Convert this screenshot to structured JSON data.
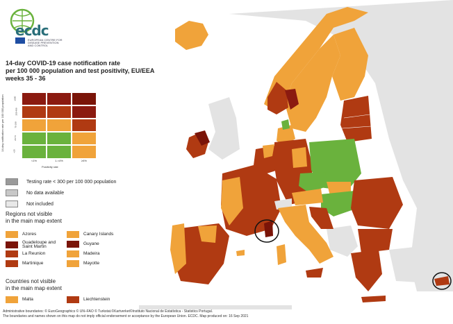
{
  "logo": {
    "text": "ecdc",
    "subtitle": "EUROPEAN CENTRE FOR DISEASE PREVENTION AND CONTROL"
  },
  "title": {
    "line1": "14-day COVID-19 case notification rate",
    "line2": "per 100 000 population and test positivity, EU/EEA",
    "line3": "weeks 35 - 36"
  },
  "matrix": {
    "y_axis_label": "14-day notification rate per 100 000 population",
    "y_ticks": [
      "≥500",
      "200-499",
      "75-199",
      "20-74",
      "<20"
    ],
    "x_axis_label": "Positivity rate",
    "x_ticks": [
      "<1%",
      "1-<4%",
      "≥4%"
    ],
    "colors": [
      [
        "#8b1a10",
        "#8b1a10",
        "#7a1408"
      ],
      [
        "#b03a12",
        "#b03a12",
        "#8b1a10"
      ],
      [
        "#f0a33a",
        "#f0a33a",
        "#b03a12"
      ],
      [
        "#6ab23d",
        "#6ab23d",
        "#f0a33a"
      ],
      [
        "#6ab23d",
        "#6ab23d",
        "#f0a33a"
      ]
    ]
  },
  "legend": {
    "testing_rate": {
      "label": "Testing rate < 300 per 100 000 population",
      "color": "#9a9a9a"
    },
    "no_data": {
      "label": "No data available",
      "color": "#c8c8c8"
    },
    "not_included": {
      "label": "Not included",
      "color": "#e8e8e8"
    }
  },
  "regions": {
    "title_line1": "Regions not visible",
    "title_line2": "in the main map extent",
    "items": [
      {
        "label": "Azores",
        "color": "#f0a33a"
      },
      {
        "label": "Canary Islands",
        "color": "#f0a33a"
      },
      {
        "label": "Guadeloupe and Saint Martin",
        "color": "#7a1408"
      },
      {
        "label": "Guyane",
        "color": "#7a1408"
      },
      {
        "label": "La Reunion",
        "color": "#b03a12"
      },
      {
        "label": "Madeira",
        "color": "#f0a33a"
      },
      {
        "label": "Martinique",
        "color": "#b03a12"
      },
      {
        "label": "Mayotte",
        "color": "#f0a33a"
      }
    ]
  },
  "countries": {
    "title_line1": "Countries not visible",
    "title_line2": "in the main map extent",
    "items": [
      {
        "label": "Malta",
        "color": "#f0a33a"
      },
      {
        "label": "Liechtenstein",
        "color": "#b03a12"
      }
    ]
  },
  "footer": {
    "line1": "Administrative boundaries: © EuroGeographics © UN–FAO © Turkstat.©Kartverket©Instituto Nacional de Estatística - Statistics Portugal.",
    "line2": "The boundaries and names shown on this map do not imply official endorsement or acceptance by the European Union. ECDC. Map produced on: 16 Sep 2021"
  },
  "map_colors": {
    "orange": "#f0a33a",
    "dark_orange": "#b03a12",
    "dark_red": "#8b1a10",
    "green": "#6ab23d",
    "not_included": "#e3e3e3",
    "sea": "#ffffff"
  }
}
